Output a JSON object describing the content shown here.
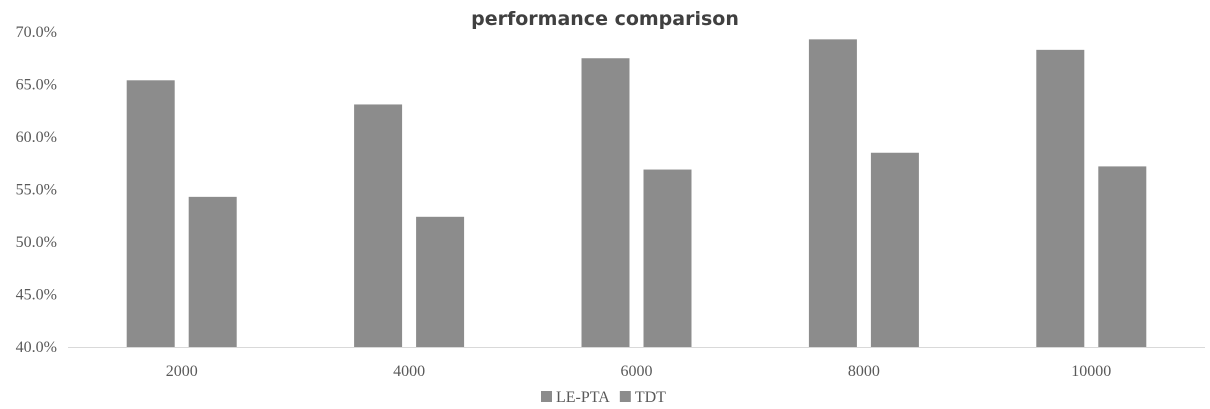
{
  "chart_data": {
    "type": "bar",
    "title": "performance comparison",
    "xlabel": "",
    "ylabel": "",
    "categories": [
      "2000",
      "4000",
      "6000",
      "8000",
      "10000"
    ],
    "series": [
      {
        "name": "LE-PTA",
        "values": [
          65.4,
          63.1,
          67.5,
          69.3,
          68.3
        ],
        "color": "#8c8c8c"
      },
      {
        "name": "TDT",
        "values": [
          54.3,
          52.4,
          56.9,
          58.5,
          57.2
        ],
        "color": "#8c8c8c"
      }
    ],
    "ylim": [
      40,
      70
    ],
    "yticks": [
      "40.0%",
      "45.0%",
      "50.0%",
      "55.0%",
      "60.0%",
      "65.0%",
      "70.0%"
    ],
    "grid": false,
    "legend_position": "bottom-center"
  }
}
